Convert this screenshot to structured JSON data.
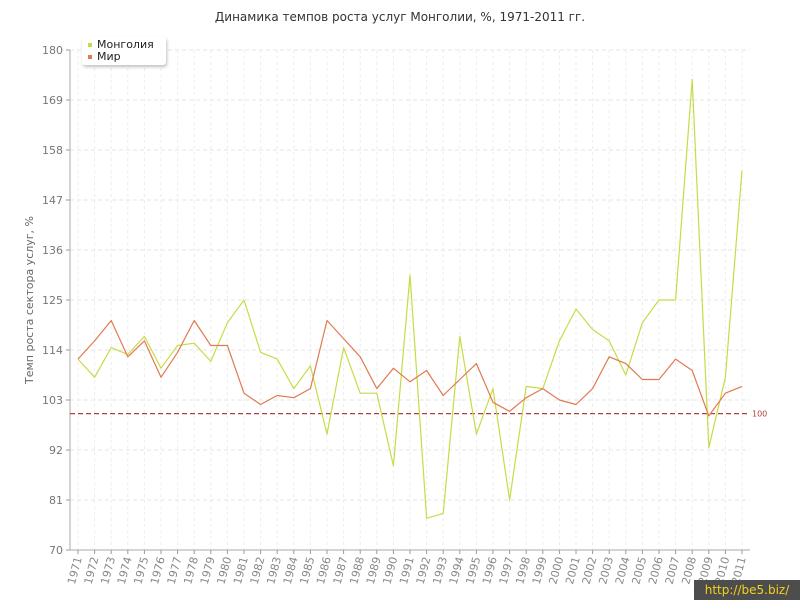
{
  "chart_data": {
    "type": "line",
    "title": "Динамика темпов роста услуг Монголии, %, 1971-2011 гг.",
    "xlabel": "",
    "ylabel": "Темп роста сектора услуг, %",
    "ylim": [
      70,
      180
    ],
    "yticks": [
      70,
      81,
      92,
      103,
      114,
      125,
      136,
      147,
      158,
      169,
      180
    ],
    "categories": [
      "1971",
      "1972",
      "1973",
      "1974",
      "1975",
      "1976",
      "1977",
      "1978",
      "1979",
      "1980",
      "1981",
      "1982",
      "1983",
      "1984",
      "1985",
      "1986",
      "1987",
      "1988",
      "1989",
      "1990",
      "1991",
      "1992",
      "1993",
      "1994",
      "1995",
      "1996",
      "1997",
      "1998",
      "1999",
      "2000",
      "2001",
      "2002",
      "2003",
      "2004",
      "2005",
      "2006",
      "2007",
      "2008",
      "2009",
      "2010",
      "2011"
    ],
    "series": [
      {
        "name": "Монголия",
        "color": "#c6dc46",
        "values": [
          112,
          108,
          114.5,
          113,
          117,
          110,
          115,
          115.5,
          111.5,
          120,
          125,
          113.5,
          112,
          105.5,
          110.5,
          95.5,
          114.5,
          104.5,
          104.5,
          88.5,
          130.5,
          77,
          78,
          117,
          95.5,
          105.5,
          81,
          106,
          105.5,
          116,
          123,
          118.5,
          116,
          108.5,
          120,
          125,
          125,
          173.5,
          92.5,
          108,
          153.5
        ]
      },
      {
        "name": "Мир",
        "color": "#e07a50",
        "values": [
          112,
          116,
          120.5,
          112.5,
          116,
          108,
          113.5,
          120.5,
          115,
          115,
          104.5,
          102,
          104,
          103.5,
          105.5,
          120.5,
          116.5,
          112.5,
          105.5,
          110,
          107,
          109.5,
          104,
          107.5,
          111,
          102.5,
          100.5,
          103.5,
          105.5,
          103,
          102,
          105.5,
          112.5,
          111,
          107.5,
          107.5,
          112,
          109.5,
          99.5,
          104.5,
          106
        ]
      }
    ],
    "reference_line": {
      "value": 100,
      "label": "100",
      "color": "#b04040"
    },
    "grid": true,
    "legend_position": "top-left"
  },
  "watermark": "http://be5.biz/"
}
